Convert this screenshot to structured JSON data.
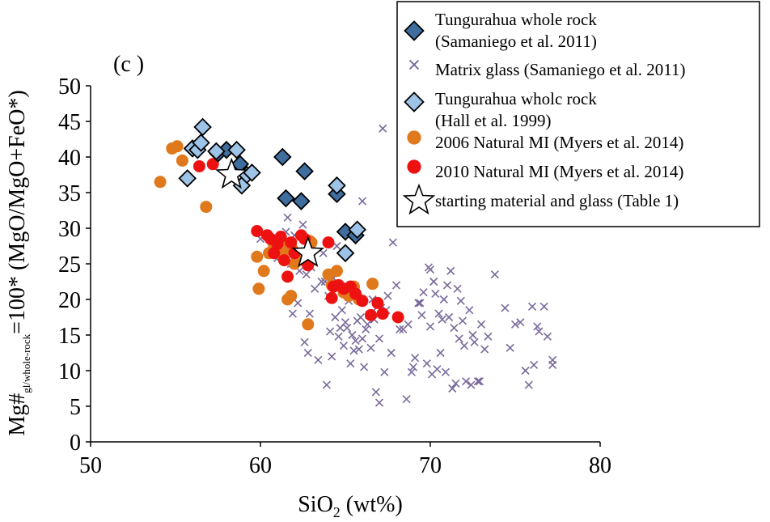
{
  "chart_data": {
    "type": "scatter",
    "panel_label": "(c )",
    "xlabel": {
      "main": "SiO",
      "sub": "2",
      "rest": " (wt%)"
    },
    "ylabel": {
      "main": "Mg#",
      "sub": "gl/whole-rock",
      "rest": "=100* (MgO/MgO+FeO*)"
    },
    "xlim": [
      50,
      80
    ],
    "ylim": [
      0,
      50
    ],
    "xticks": [
      "50",
      "60",
      "70",
      "80"
    ],
    "yticks": [
      "0",
      "5",
      "10",
      "15",
      "20",
      "25",
      "30",
      "35",
      "40",
      "45",
      "50"
    ],
    "grid": false,
    "legend_position": "top-right",
    "legend": [
      {
        "lines": [
          "Tungurahua whole rock",
          "(Samaniego et al. 2011)"
        ],
        "marker": "diamond",
        "color": "#3f6e9e"
      },
      {
        "lines": [
          "Matrix glass (Samaniego et al. 2011)"
        ],
        "marker": "x",
        "color": "#7a6a9a"
      },
      {
        "lines": [
          "Tungurahua wholc rock",
          "(Hall et al. 1999)"
        ],
        "marker": "diamond",
        "color": "#9dc3e6"
      },
      {
        "lines": [
          "2006 Natural MI (Myers et al. 2014)"
        ],
        "marker": "circle",
        "color": "#e0781c"
      },
      {
        "lines": [
          "2010 Natural MI (Myers et al. 2014)"
        ],
        "marker": "circle",
        "color": "#ee1111"
      },
      {
        "lines": [
          "starting material and glass (Table 1)"
        ],
        "marker": "star",
        "color": "#ffffff"
      }
    ],
    "series": [
      {
        "name": "Matrix glass (Samaniego et al. 2011)",
        "marker": "x",
        "color": "#7a6a9a",
        "x": [
          60.0,
          60.8,
          61.2,
          61.8,
          62.3,
          62.7,
          62.0,
          61.5,
          62.5,
          63.0,
          62.8,
          61.9,
          62.2,
          62.6,
          63.4,
          63.9,
          64.1,
          64.4,
          64.8,
          65.1,
          65.4,
          65.7,
          66.0,
          66.3,
          66.6,
          66.9,
          64.2,
          64.9,
          65.3,
          65.8,
          66.2,
          66.7,
          67.1,
          67.5,
          64.6,
          65.0,
          65.5,
          66.1,
          66.8,
          67.3,
          67.8,
          68.2,
          68.7,
          69.0,
          69.3,
          69.6,
          69.9,
          70.2,
          70.5,
          70.8,
          71.1,
          71.4,
          71.7,
          72.0,
          70.1,
          70.6,
          71.2,
          71.8,
          72.3,
          69.5,
          70.0,
          70.9,
          71.5,
          72.1,
          72.6,
          73.2,
          73.8,
          74.4,
          75.0,
          75.6,
          76.0,
          76.3,
          76.7,
          77.2,
          69.8,
          70.3,
          71.6,
          72.4,
          72.9,
          71.9,
          72.5,
          73.0,
          75.8,
          76.1,
          75.3,
          76.4,
          62.4,
          63.6,
          64.0,
          64.3,
          65.2,
          65.9,
          66.4,
          67.0,
          67.7,
          68.4,
          69.1,
          66.5,
          67.4,
          68.9,
          70.4,
          71.3,
          63.8,
          65.6,
          67.0,
          67.2,
          62.9,
          63.2,
          64.7,
          66.0,
          61.6,
          61.0,
          72.8,
          73.4,
          70.7,
          71.0,
          69.4,
          74.7,
          76.9,
          63.7,
          64.5,
          68.0,
          68.6,
          70.0,
          77.2
        ],
        "y": [
          28.5,
          27.0,
          26.0,
          25.0,
          24.0,
          23.5,
          29.0,
          29.5,
          30.5,
          24.5,
          12.5,
          18.0,
          19.5,
          14.0,
          11.5,
          8.0,
          15.5,
          17.5,
          18.5,
          16.0,
          15.0,
          17.0,
          14.5,
          16.5,
          20.0,
          19.0,
          12.0,
          13.5,
          11.0,
          13.0,
          15.8,
          17.2,
          18.8,
          20.5,
          14.8,
          16.8,
          12.8,
          10.5,
          7.0,
          9.8,
          28.0,
          15.8,
          16.5,
          10.5,
          19.5,
          21.0,
          24.5,
          22.5,
          18.0,
          20.0,
          17.5,
          16.0,
          14.5,
          13.5,
          9.5,
          12.5,
          24.0,
          19.8,
          18.5,
          17.8,
          16.2,
          9.8,
          8.2,
          8.5,
          14.0,
          13.0,
          23.5,
          18.8,
          16.5,
          10.0,
          19.0,
          16.2,
          19.0,
          11.5,
          11.0,
          20.8,
          21.5,
          8.0,
          8.5,
          17.0,
          15.0,
          16.5,
          8.0,
          10.8,
          16.8,
          15.5,
          25.0,
          22.5,
          20.5,
          23.0,
          19.8,
          17.5,
          17.8,
          14.5,
          12.5,
          15.8,
          11.8,
          13.2,
          18.5,
          9.8,
          10.2,
          7.5,
          22.5,
          14.2,
          5.5,
          44.0,
          18.0,
          21.5,
          16.0,
          33.8,
          31.5,
          25.8,
          8.5,
          14.8,
          17.2,
          22.0,
          19.5,
          13.2,
          14.8,
          26.5,
          27.5,
          22.0,
          6.0,
          24.2,
          10.8
        ]
      },
      {
        "name": "2006 Natural MI (Myers et al. 2014)",
        "marker": "circle",
        "color": "#e0781c",
        "x": [
          54.1,
          54.8,
          55.1,
          55.4,
          56.8,
          59.8,
          59.9,
          60.2,
          60.5,
          60.8,
          61.0,
          61.2,
          61.5,
          61.6,
          61.8,
          62.0,
          62.3,
          62.5,
          62.8,
          63.0,
          61.4,
          61.9,
          62.6,
          64.0,
          64.2,
          64.5,
          64.9,
          65.2,
          65.5,
          65.8,
          66.6,
          62.9
        ],
        "y": [
          36.5,
          41.2,
          41.5,
          39.5,
          33.0,
          26.0,
          21.5,
          24.0,
          26.5,
          27.5,
          28.0,
          26.5,
          27.5,
          20.0,
          20.5,
          25.0,
          26.0,
          25.5,
          16.5,
          28.0,
          26.8,
          27.0,
          25.8,
          23.5,
          22.0,
          24.0,
          21.0,
          20.5,
          21.8,
          20.0,
          22.2,
          28.2
        ]
      },
      {
        "name": "2010 Natural MI (Myers et al. 2014)",
        "marker": "circle",
        "color": "#ee1111",
        "x": [
          56.4,
          57.2,
          59.8,
          60.4,
          60.6,
          60.8,
          61.0,
          61.2,
          61.4,
          61.6,
          61.8,
          62.0,
          62.4,
          62.6,
          62.8,
          64.0,
          64.3,
          64.6,
          64.9,
          65.3,
          65.6,
          66.0,
          66.5,
          66.9,
          67.2,
          68.1,
          64.2
        ],
        "y": [
          38.7,
          39.0,
          29.6,
          29.0,
          28.5,
          26.5,
          27.8,
          28.8,
          25.5,
          23.2,
          28.0,
          26.5,
          29.0,
          28.5,
          24.8,
          28.0,
          21.8,
          22.0,
          21.5,
          21.8,
          20.8,
          19.8,
          17.8,
          19.5,
          18.0,
          17.5,
          20.2
        ]
      },
      {
        "name": "Tungurahua whole rock (Samaniego et al. 2011)",
        "marker": "diamond",
        "color": "#3f6e9e",
        "x": [
          57.5,
          58.0,
          58.8,
          61.3,
          61.5,
          62.4,
          62.6,
          64.5,
          65.0,
          65.6
        ],
        "y": [
          40.5,
          41.0,
          39.0,
          40.0,
          34.2,
          33.8,
          38.0,
          34.8,
          29.5,
          29.0
        ]
      },
      {
        "name": "Tungurahua wholc rock (Hall et al. 1999)",
        "marker": "diamond",
        "color": "#9dc3e6",
        "x": [
          55.7,
          56.0,
          56.3,
          56.5,
          56.6,
          57.4,
          58.6,
          58.9,
          59.2,
          59.5,
          64.5,
          65.0,
          65.7
        ],
        "y": [
          37.0,
          41.2,
          41.0,
          42.0,
          44.2,
          40.8,
          41.0,
          36.0,
          37.5,
          37.8,
          36.0,
          26.5,
          29.8
        ]
      },
      {
        "name": "starting material and glass (Table 1)",
        "marker": "star",
        "color": "#ffffff",
        "x": [
          58.3,
          62.8
        ],
        "y": [
          37.5,
          26.5
        ]
      }
    ]
  }
}
